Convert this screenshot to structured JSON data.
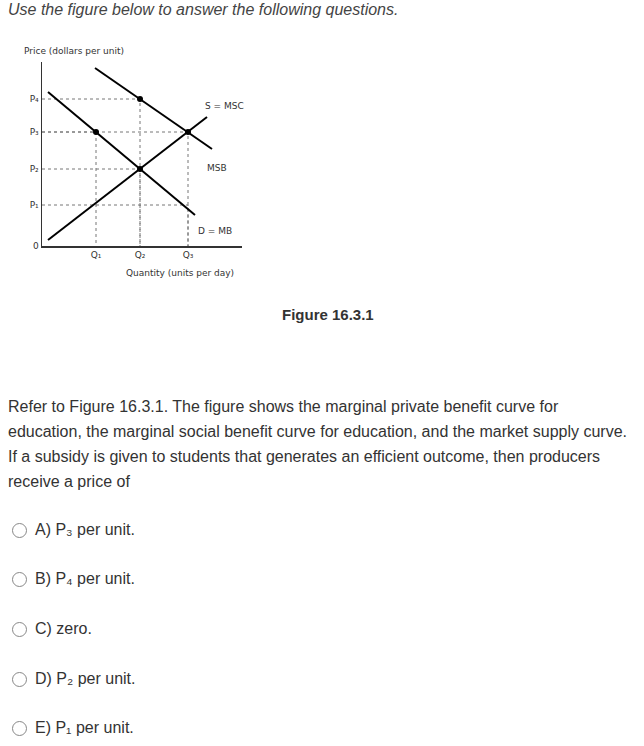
{
  "page": {
    "instruction": "Use the figure below to answer the following questions.",
    "figure_caption": "Figure 16.3.1",
    "question": "Refer to Figure 16.3.1. The figure shows the marginal private benefit curve for education, the marginal social benefit curve for education, and the market supply curve. If a subsidy is given to students that generates an efficient outcome, then producers receive a price of",
    "options": [
      {
        "letter": "A)",
        "text": "P₃ per unit."
      },
      {
        "letter": "B)",
        "text": "P₄ per unit."
      },
      {
        "letter": "C)",
        "text": "zero."
      },
      {
        "letter": "D)",
        "text": "P₂ per unit."
      },
      {
        "letter": "E)",
        "text": "P₁ per unit."
      }
    ]
  },
  "chart_data": {
    "type": "line",
    "ylabel": "Price (dollars per unit)",
    "xlabel": "Quantity (units per day)",
    "xlim": [
      0,
      20
    ],
    "ylim": [
      0,
      18.4
    ],
    "xticks": [
      {
        "value": 5.4,
        "label": "Q₁"
      },
      {
        "value": 9.8,
        "label": "Q₂"
      },
      {
        "value": 14.6,
        "label": "Q₃"
      }
    ],
    "yticks": [
      0,
      {
        "value": 4.1,
        "label": "P₁"
      },
      {
        "value": 7.7,
        "label": "P₂"
      },
      {
        "value": 11.4,
        "label": "P₃"
      },
      {
        "value": 14.7,
        "label": "P₄"
      }
    ],
    "grid": false,
    "series": [
      {
        "color": "#000000",
        "x": [
          0.6,
          16.5
        ],
        "values": [
          0.6,
          12.9
        ]
      },
      {
        "color": "#000000",
        "x": [
          5.3,
          17.0
        ],
        "values": [
          17.8,
          9.7
        ]
      },
      {
        "color": "#000000",
        "x": [
          0.6,
          15.3
        ],
        "values": [
          15.4,
          3.1
        ]
      }
    ],
    "guides": {
      "x": [
        9.8,
        14.6,
        9.8,
        5.4,
        14.6
      ],
      "values": [
        14.7,
        11.4,
        7.7,
        11.4,
        4.1
      ],
      "color": "#777777",
      "line_style": "dotted"
    },
    "points": {
      "x": [
        5.4,
        9.8,
        9.8,
        14.6
      ],
      "values": [
        11.4,
        14.7,
        7.7,
        11.4
      ],
      "color": "#000000",
      "marker": "circle"
    },
    "annotations": [
      {
        "text": "S = MSC",
        "x": 18.2,
        "y": 14.0
      },
      {
        "text": "MSB",
        "x": 17.5,
        "y": 7.8
      },
      {
        "text": "D = MB",
        "x": 17.3,
        "y": 1.5
      }
    ]
  }
}
